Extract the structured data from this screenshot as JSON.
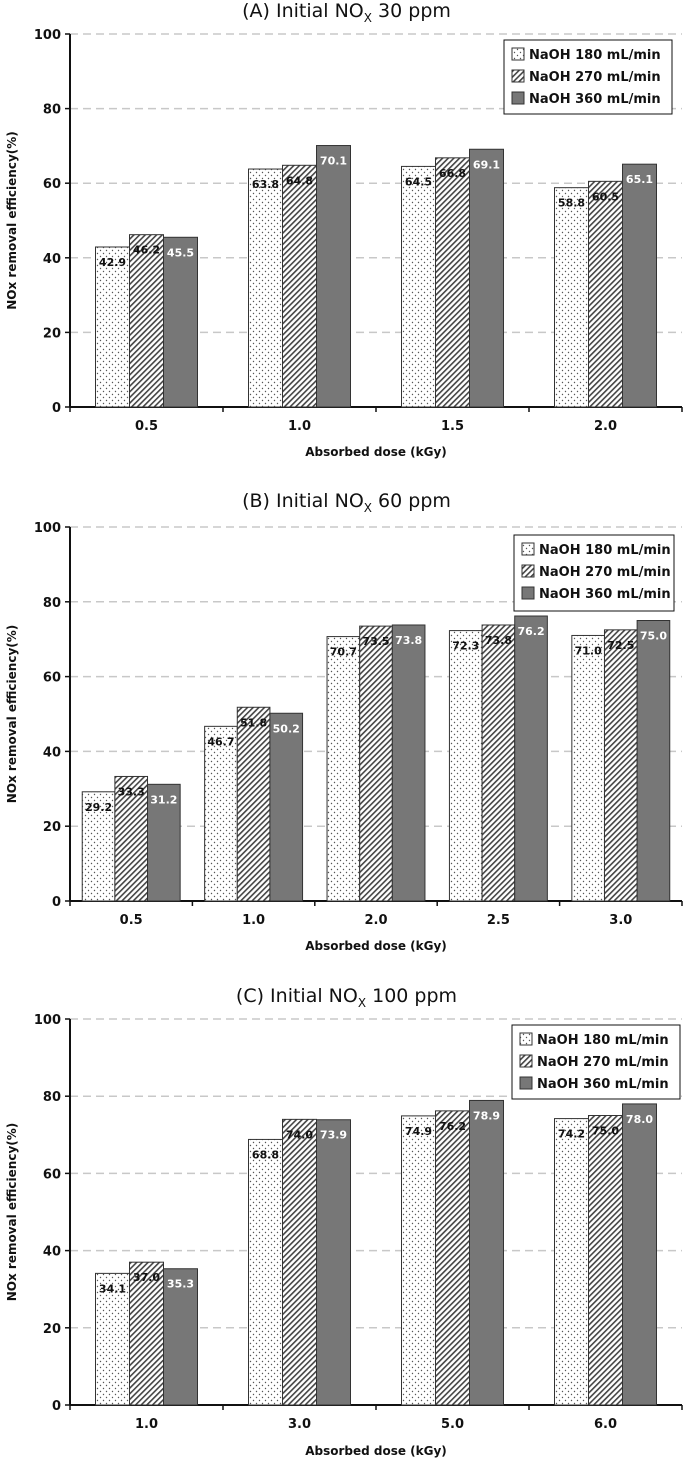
{
  "chart_data": [
    {
      "type": "bar",
      "title_prefix": "(A) Initial NO",
      "title_sub": "X",
      "title_suffix": " 30 ppm",
      "xlabel": "Absorbed dose (kGy)",
      "ylabel": "NOx removal efficiency(%)",
      "ylim": [
        0,
        100
      ],
      "yticks": [
        "0",
        "20",
        "40",
        "60",
        "80",
        "100"
      ],
      "grid": true,
      "legend_position": "top-right",
      "categories": [
        "0.5",
        "1.0",
        "1.5",
        "2.0"
      ],
      "series": [
        {
          "name": "NaOH 180 mL/min",
          "values": [
            42.9,
            63.8,
            64.5,
            58.8
          ],
          "labels": [
            "42.9",
            "63.8",
            "64.5",
            "58.8"
          ]
        },
        {
          "name": "NaOH 270 mL/min",
          "values": [
            46.2,
            64.8,
            66.8,
            60.5
          ],
          "labels": [
            "46.2",
            "64.8",
            "66.8",
            "60.5"
          ]
        },
        {
          "name": "NaOH 360 mL/min",
          "values": [
            45.5,
            70.1,
            69.1,
            65.1
          ],
          "labels": [
            "45.5",
            "70.1",
            "69.1",
            "65.1"
          ]
        }
      ]
    },
    {
      "type": "bar",
      "title_prefix": "(B) Initial NO",
      "title_sub": "X",
      "title_suffix": " 60 ppm",
      "xlabel": "Absorbed dose (kGy)",
      "ylabel": "NOx removal efficiency(%)",
      "ylim": [
        0,
        100
      ],
      "yticks": [
        "0",
        "20",
        "40",
        "60",
        "80",
        "100"
      ],
      "grid": true,
      "legend_position": "top-right",
      "categories": [
        "0.5",
        "1.0",
        "2.0",
        "2.5",
        "3.0"
      ],
      "series": [
        {
          "name": "NaOH 180 mL/min",
          "values": [
            29.2,
            46.7,
            70.7,
            72.3,
            71.0
          ],
          "labels": [
            "29.2",
            "46.7",
            "70.7",
            "72.3",
            "71.0"
          ]
        },
        {
          "name": "NaOH 270 mL/min",
          "values": [
            33.3,
            51.8,
            73.5,
            73.8,
            72.5
          ],
          "labels": [
            "33.3",
            "51.8",
            "73.5",
            "73.8",
            "72.5"
          ]
        },
        {
          "name": "NaOH 360 mL/min",
          "values": [
            31.2,
            50.2,
            73.8,
            76.2,
            75.0
          ],
          "labels": [
            "31.2",
            "50.2",
            "73.8",
            "76.2",
            "75.0"
          ]
        }
      ]
    },
    {
      "type": "bar",
      "title_prefix": "(C) Initial NO",
      "title_sub": "X",
      "title_suffix": " 100 ppm",
      "xlabel": "Absorbed dose (kGy)",
      "ylabel": "NOx removal efficiency(%)",
      "ylim": [
        0,
        100
      ],
      "yticks": [
        "0",
        "20",
        "40",
        "60",
        "80",
        "100"
      ],
      "grid": true,
      "legend_position": "top-right",
      "categories": [
        "1.0",
        "3.0",
        "5.0",
        "6.0"
      ],
      "series": [
        {
          "name": "NaOH 180 mL/min",
          "values": [
            34.1,
            68.8,
            74.9,
            74.2
          ],
          "labels": [
            "34.1",
            "68.8",
            "74.9",
            "74.2"
          ]
        },
        {
          "name": "NaOH 270 mL/min",
          "values": [
            37.0,
            74.0,
            76.2,
            75.0
          ],
          "labels": [
            "37.0",
            "74.0",
            "76.2",
            "75.0"
          ]
        },
        {
          "name": "NaOH 360 mL/min",
          "values": [
            35.3,
            73.9,
            78.9,
            78.0
          ],
          "labels": [
            "35.3",
            "73.9",
            "78.9",
            "78.0"
          ]
        }
      ]
    }
  ],
  "colors": {
    "series_180": "#ffffff",
    "series_270": "#ffffff",
    "series_360": "#777777",
    "grid": "#c8c8c8",
    "bar_stroke": "#333333",
    "axis": "#111111"
  }
}
